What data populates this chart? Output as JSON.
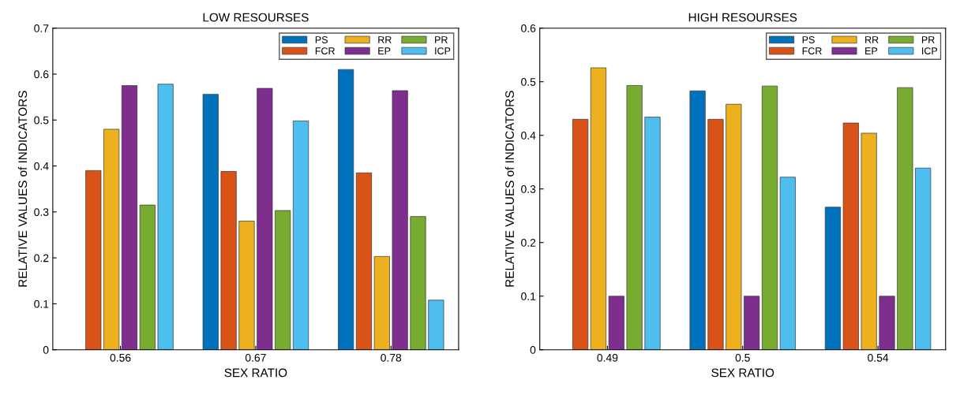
{
  "chart_data": [
    {
      "type": "bar",
      "title": "LOW RESOURSES",
      "xlabel": "SEX RATIO",
      "ylabel": "RELATIVE VALUES of INDICATORS",
      "categories": [
        "0.56",
        "0.67",
        "0.78"
      ],
      "ylim": [
        0,
        0.7
      ],
      "yticks": [
        0,
        0.1,
        0.2,
        0.3,
        0.4,
        0.5,
        0.6,
        0.7
      ],
      "legend": "top right",
      "series": [
        {
          "name": "PS",
          "color": "#0072bd",
          "values": [
            null,
            0.556,
            0.61
          ]
        },
        {
          "name": "FCR",
          "color": "#d95319",
          "values": [
            0.39,
            0.388,
            0.385
          ]
        },
        {
          "name": "RR",
          "color": "#edb120",
          "values": [
            0.48,
            0.28,
            0.203
          ]
        },
        {
          "name": "EP",
          "color": "#7e2f8e",
          "values": [
            0.575,
            0.569,
            0.564
          ]
        },
        {
          "name": "PR",
          "color": "#77ac30",
          "values": [
            0.315,
            0.303,
            0.29
          ]
        },
        {
          "name": "ICP",
          "color": "#4dbeee",
          "values": [
            0.578,
            0.498,
            0.108
          ]
        }
      ]
    },
    {
      "type": "bar",
      "title": "HIGH RESOURSES",
      "xlabel": "SEX RATIO",
      "ylabel": "RELATIVE VALUES of INDICATORS",
      "categories": [
        "0.49",
        "0.5",
        "0.54"
      ],
      "ylim": [
        0,
        0.6
      ],
      "yticks": [
        0,
        0.1,
        0.2,
        0.3,
        0.4,
        0.5,
        0.6
      ],
      "legend": "top right",
      "series": [
        {
          "name": "PS",
          "color": "#0072bd",
          "values": [
            null,
            0.483,
            0.266
          ]
        },
        {
          "name": "FCR",
          "color": "#d95319",
          "values": [
            0.43,
            0.43,
            0.423
          ]
        },
        {
          "name": "RR",
          "color": "#edb120",
          "values": [
            0.526,
            0.458,
            0.404
          ]
        },
        {
          "name": "EP",
          "color": "#7e2f8e",
          "values": [
            0.1,
            0.1,
            0.1
          ]
        },
        {
          "name": "PR",
          "color": "#77ac30",
          "values": [
            0.493,
            0.492,
            0.489
          ]
        },
        {
          "name": "ICP",
          "color": "#4dbeee",
          "values": [
            0.434,
            0.322,
            0.339
          ]
        }
      ]
    }
  ]
}
